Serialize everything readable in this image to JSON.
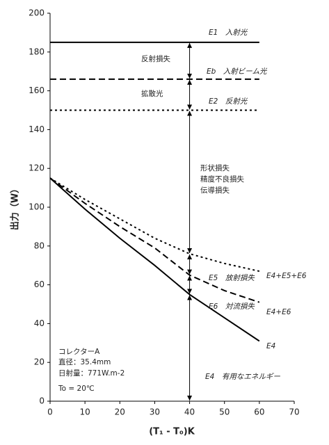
{
  "chart_data": {
    "type": "line",
    "y_label": "出力（W）",
    "x_label": "(T₁ - T₀)K",
    "x": [
      0,
      10,
      20,
      30,
      40,
      50,
      60
    ],
    "xlim": [
      0,
      70
    ],
    "xticks": [
      0,
      10,
      20,
      30,
      40,
      50,
      60,
      70
    ],
    "ylim": [
      0,
      200
    ],
    "yticks": [
      0,
      20,
      40,
      60,
      80,
      100,
      120,
      140,
      160,
      180,
      200
    ],
    "series": [
      {
        "name": "E1　入射光",
        "color": "#000000",
        "style": "solid",
        "values": [
          185,
          185,
          185,
          185,
          185,
          185,
          185
        ]
      },
      {
        "name": "Eb　入射ビーム光",
        "color": "#000000",
        "style": "dashed",
        "values": [
          166,
          166,
          166,
          166,
          166,
          166,
          166
        ]
      },
      {
        "name": "E2　反射光",
        "color": "#000000",
        "style": "dotted",
        "values": [
          150,
          150,
          150,
          150,
          150,
          150,
          150
        ]
      },
      {
        "name": "E4+E5+E6",
        "color": "#000000",
        "style": "dotted",
        "values": [
          115,
          104,
          94,
          84,
          76,
          71,
          67
        ]
      },
      {
        "name": "E4+E6",
        "color": "#000000",
        "style": "dashed",
        "values": [
          115,
          102,
          90,
          79,
          65,
          57,
          51
        ]
      },
      {
        "name": "E4",
        "color": "#000000",
        "style": "solid",
        "values": [
          115,
          99,
          84,
          70,
          55,
          43,
          31
        ]
      }
    ],
    "annotations": [
      "反射損失",
      "拡散光",
      "形状損失",
      "精度不良損失",
      "伝導損失",
      "E5　放射損失",
      "E6　対流損失",
      "E4　有用なエネルギー"
    ],
    "note": [
      "コレクターA",
      "直径：35.4mm",
      "日射量：771W.m-2",
      "To = 20℃"
    ]
  }
}
